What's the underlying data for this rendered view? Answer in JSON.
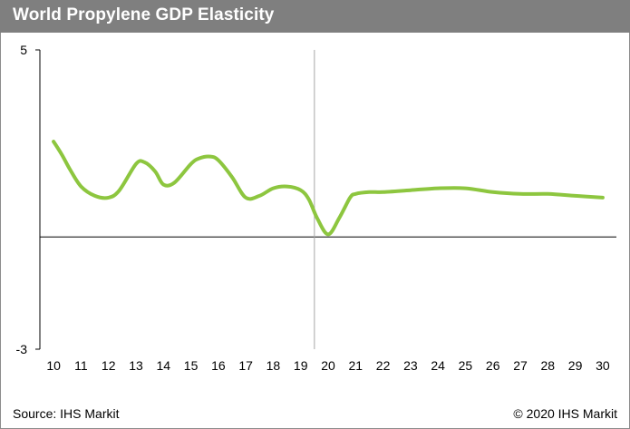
{
  "header": {
    "title": "World Propylene GDP Elasticity"
  },
  "footer": {
    "source": "Source: IHS Markit",
    "copyright": "© 2020 IHS Markit"
  },
  "colors": {
    "series": "#8dc63f",
    "header_bg": "#7f7f7f",
    "axis": "#000000",
    "divider": "#a6a6a6"
  },
  "chart_data": {
    "type": "line",
    "title": "World Propylene GDP Elasticity",
    "xlabel": "",
    "ylabel": "",
    "ylim": [
      -3,
      5
    ],
    "y_ticks_labeled": [
      "5",
      "-3"
    ],
    "x_ticks": [
      "10",
      "11",
      "12",
      "13",
      "14",
      "15",
      "16",
      "17",
      "18",
      "19",
      "20",
      "21",
      "22",
      "23",
      "24",
      "25",
      "26",
      "27",
      "28",
      "29",
      "30"
    ],
    "divider_x": 19.5,
    "grid": false,
    "legend": "none",
    "series": [
      {
        "x": [
          10,
          10.3,
          10.6,
          11,
          11.5,
          12,
          12.4,
          13,
          13.3,
          13.7,
          14,
          14.4,
          15,
          15.3,
          15.7,
          16,
          16.5,
          17,
          17.5,
          18,
          18.5,
          19,
          19.3,
          19.6,
          20,
          20.4,
          20.8,
          21,
          21.5,
          22,
          23,
          24,
          25,
          26,
          27,
          28,
          29,
          30
        ],
        "values": [
          2.55,
          2.2,
          1.8,
          1.35,
          1.1,
          1.05,
          1.25,
          1.95,
          2.0,
          1.75,
          1.4,
          1.45,
          1.95,
          2.1,
          2.15,
          2.05,
          1.6,
          1.05,
          1.1,
          1.3,
          1.35,
          1.25,
          1.0,
          0.5,
          0.07,
          0.5,
          1.05,
          1.15,
          1.2,
          1.2,
          1.25,
          1.3,
          1.3,
          1.2,
          1.15,
          1.15,
          1.1,
          1.05
        ]
      }
    ]
  }
}
